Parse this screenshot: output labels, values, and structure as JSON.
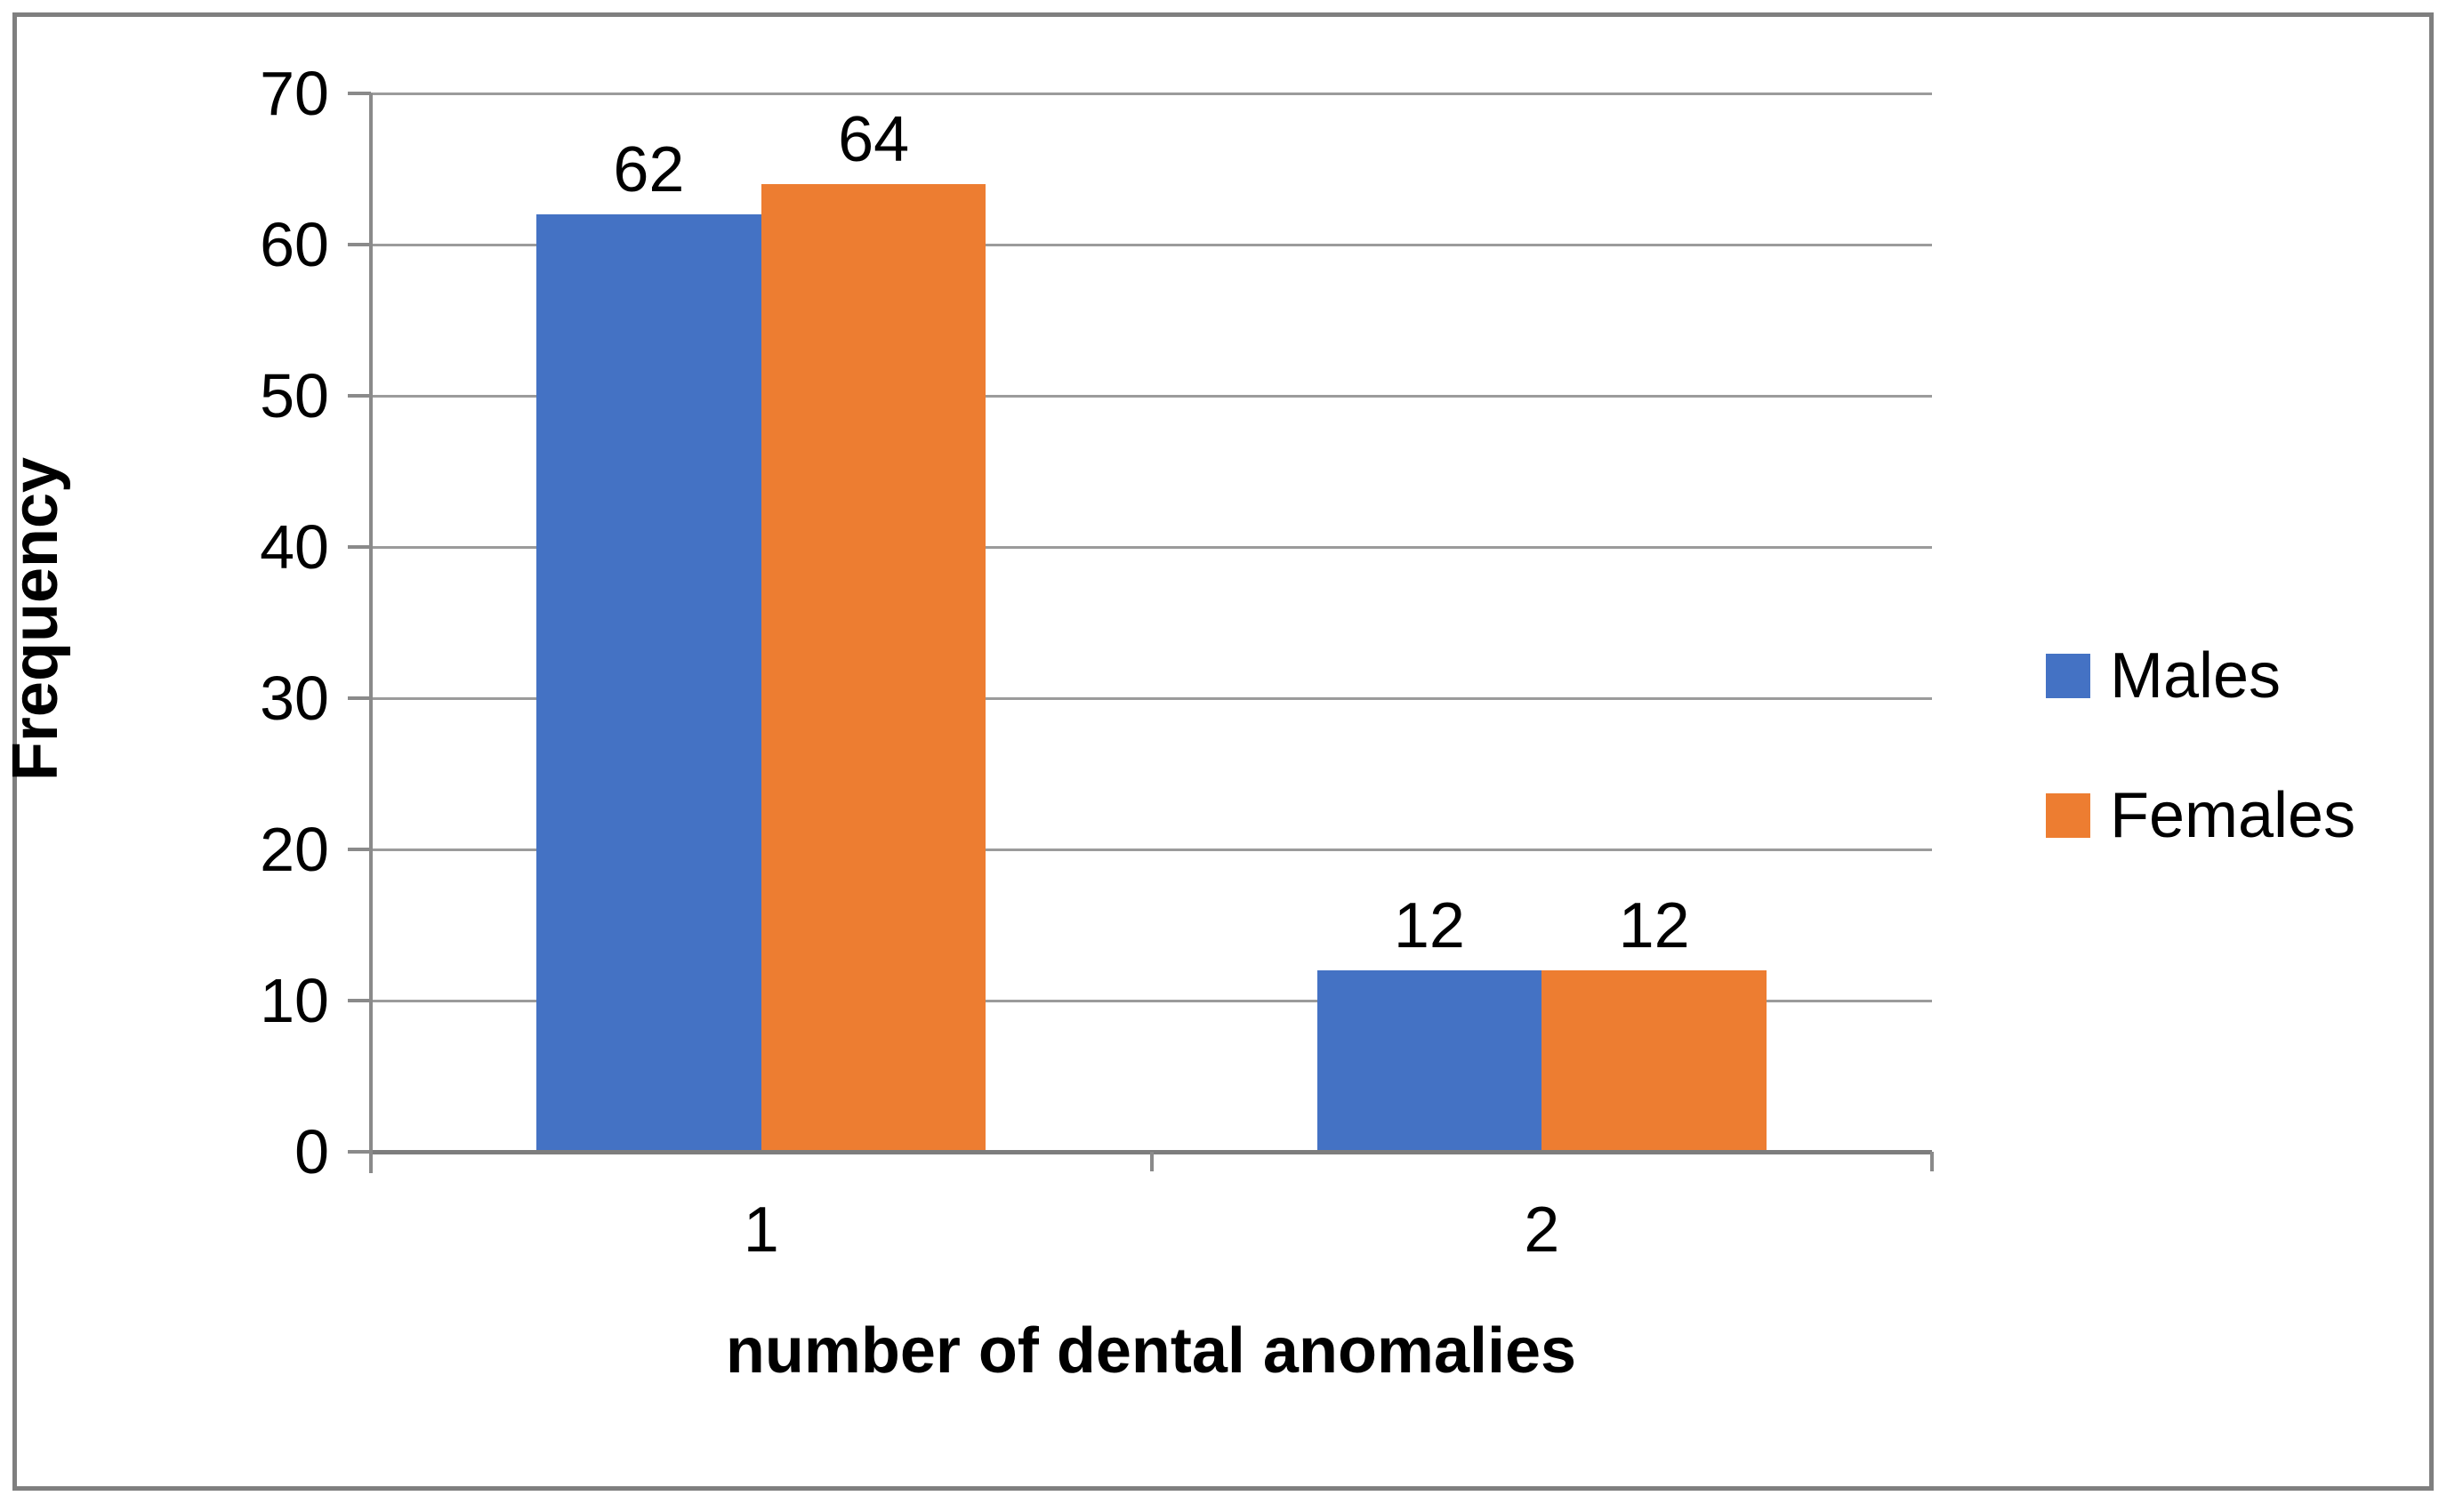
{
  "figure": {
    "background_color": "#FFFFFF",
    "border_color": "#7F7F7F",
    "gridline_color": "#9B9B9B",
    "axis_color": "#8A8A8A"
  },
  "chart_data": {
    "type": "bar",
    "categories": [
      "1",
      "2"
    ],
    "series": [
      {
        "name": "Males",
        "color": "#4472C4",
        "values": [
          62,
          12
        ],
        "data_labels": [
          "62",
          "12"
        ]
      },
      {
        "name": "Females",
        "color": "#ED7D31",
        "values": [
          64,
          12
        ],
        "data_labels": [
          "64",
          "12"
        ]
      }
    ],
    "title": "",
    "xlabel": "number of dental anomalies",
    "ylabel": "Frequency",
    "ylim": [
      0,
      70
    ],
    "ytick_step": 10,
    "ytick_labels": [
      "0",
      "10",
      "20",
      "30",
      "40",
      "50",
      "60",
      "70"
    ],
    "grid": true,
    "legend_position": "right",
    "show_data_labels": true
  }
}
